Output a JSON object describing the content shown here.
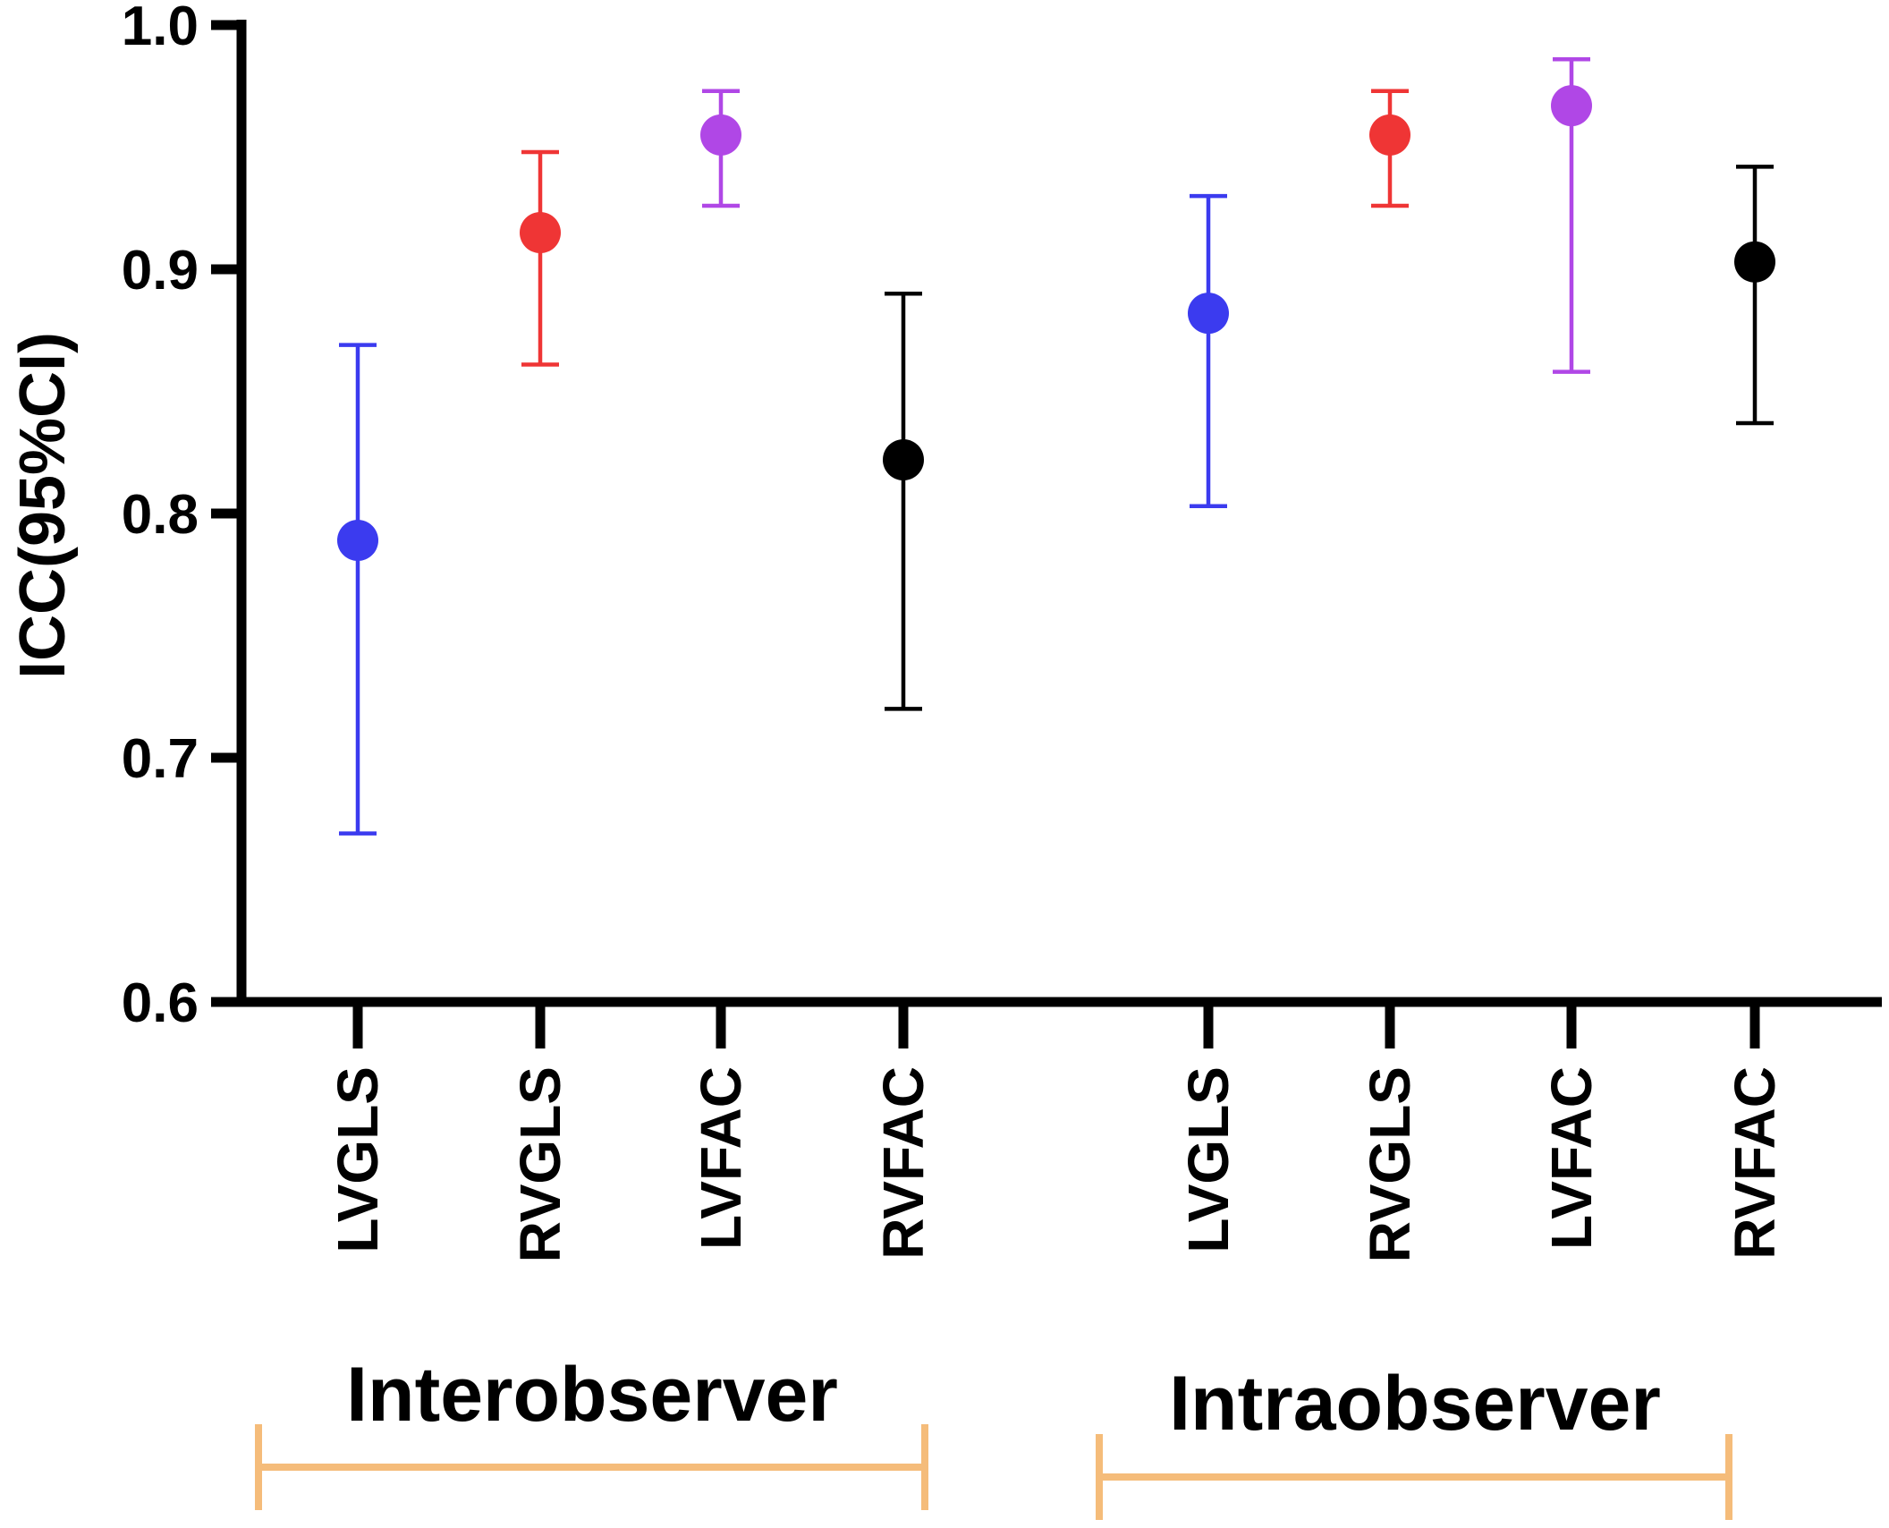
{
  "chart_data": {
    "type": "scatter",
    "title": "",
    "xlabel": "",
    "ylabel": "ICC(95%CI)",
    "ylim": [
      0.6,
      1.0
    ],
    "yticks": [
      0.6,
      0.7,
      0.8,
      0.9,
      1.0
    ],
    "ytick_labels": [
      "0.6",
      "0.7",
      "0.8",
      "0.9",
      "1.0"
    ],
    "groups": [
      {
        "name": "Interobserver",
        "bracket_color": "#F5BC7A",
        "points": [
          {
            "label": "LVGLS",
            "value": 0.789,
            "ci_low": 0.669,
            "ci_high": 0.869,
            "color": "#3B3BEF"
          },
          {
            "label": "RVGLS",
            "value": 0.915,
            "ci_low": 0.861,
            "ci_high": 0.948,
            "color": "#EF3535"
          },
          {
            "label": "LVFAC",
            "value": 0.955,
            "ci_low": 0.926,
            "ci_high": 0.973,
            "color": "#B047E6"
          },
          {
            "label": "RVFAC",
            "value": 0.822,
            "ci_low": 0.72,
            "ci_high": 0.89,
            "color": "#000000"
          }
        ]
      },
      {
        "name": "Intraobserver",
        "bracket_color": "#F5BC7A",
        "points": [
          {
            "label": "LVGLS",
            "value": 0.882,
            "ci_low": 0.803,
            "ci_high": 0.93,
            "color": "#3B3BEF"
          },
          {
            "label": "RVGLS",
            "value": 0.955,
            "ci_low": 0.926,
            "ci_high": 0.973,
            "color": "#EF3535"
          },
          {
            "label": "LVFAC",
            "value": 0.967,
            "ci_low": 0.858,
            "ci_high": 0.986,
            "color": "#B047E6"
          },
          {
            "label": "RVFAC",
            "value": 0.903,
            "ci_low": 0.837,
            "ci_high": 0.942,
            "color": "#000000"
          }
        ]
      }
    ]
  }
}
